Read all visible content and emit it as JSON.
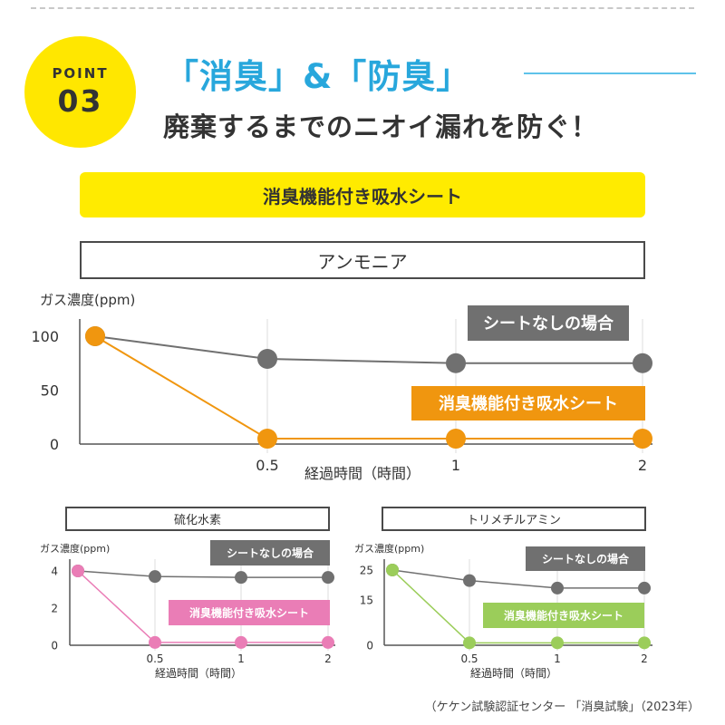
{
  "point": {
    "label": "POINT",
    "number": "03"
  },
  "headline": "「消臭」&「防臭」",
  "subheadline": "廃棄するまでのニオイ漏れを防ぐ！",
  "product_banner": "消臭機能付き吸水シート",
  "colors": {
    "badge": "#ffe700",
    "headline": "#28a7dc",
    "banner": "#ffeb00",
    "no_sheet": "#707070",
    "ammonia_sheet": "#f0960f",
    "hydrogen_sulfide_sheet": "#ea7db6",
    "trimethylamine_sheet": "#9bcd5a"
  },
  "chart_data": [
    {
      "type": "line",
      "title": "アンモニア",
      "ylabel": "ガス濃度(ppm)",
      "xlabel": "経過時間（時間）",
      "x": [
        0,
        0.5,
        1,
        2
      ],
      "x_tick_labels": [
        "0.5",
        "1",
        "2"
      ],
      "y_ticks": [
        0,
        50,
        100
      ],
      "ylim": [
        0,
        100
      ],
      "grid": "vertical",
      "series": [
        {
          "name": "シートなしの場合",
          "color": "#707070",
          "values": [
            100,
            79,
            75,
            75
          ]
        },
        {
          "name": "消臭機能付き吸水シート",
          "color": "#f0960f",
          "values": [
            100,
            5,
            5,
            5
          ]
        }
      ]
    },
    {
      "type": "line",
      "title": "硫化水素",
      "ylabel": "ガス濃度(ppm)",
      "xlabel": "経過時間（時間）",
      "x": [
        0,
        0.5,
        1,
        2
      ],
      "x_tick_labels": [
        "0.5",
        "1",
        "2"
      ],
      "y_ticks": [
        0,
        2,
        4
      ],
      "ylim": [
        0,
        4
      ],
      "grid": "vertical",
      "series": [
        {
          "name": "シートなしの場合",
          "color": "#707070",
          "values": [
            4,
            3.7,
            3.65,
            3.65
          ]
        },
        {
          "name": "消臭機能付き吸水シート",
          "color": "#ea7db6",
          "values": [
            4,
            0.15,
            0.15,
            0.15
          ]
        }
      ]
    },
    {
      "type": "line",
      "title": "トリメチルアミン",
      "ylabel": "ガス濃度(ppm)",
      "xlabel": "経過時間（時間）",
      "x": [
        0,
        0.5,
        1,
        2
      ],
      "x_tick_labels": [
        "0.5",
        "1",
        "2"
      ],
      "y_ticks": [
        0,
        15,
        25
      ],
      "ylim": [
        0,
        25
      ],
      "grid": "vertical",
      "series": [
        {
          "name": "シートなしの場合",
          "color": "#707070",
          "values": [
            25,
            21.5,
            19,
            19
          ]
        },
        {
          "name": "消臭機能付き吸水シート",
          "color": "#9bcd5a",
          "values": [
            25,
            0.8,
            0.8,
            0.8
          ]
        }
      ]
    }
  ],
  "source": "（ケケン試験認証センター 「消臭試験」（2023年）"
}
